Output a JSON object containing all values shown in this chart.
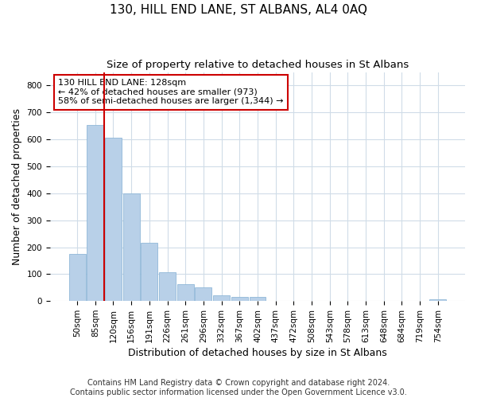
{
  "title": "130, HILL END LANE, ST ALBANS, AL4 0AQ",
  "subtitle": "Size of property relative to detached houses in St Albans",
  "xlabel": "Distribution of detached houses by size in St Albans",
  "ylabel": "Number of detached properties",
  "footnote1": "Contains HM Land Registry data © Crown copyright and database right 2024.",
  "footnote2": "Contains public sector information licensed under the Open Government Licence v3.0.",
  "bar_labels": [
    "50sqm",
    "85sqm",
    "120sqm",
    "156sqm",
    "191sqm",
    "226sqm",
    "261sqm",
    "296sqm",
    "332sqm",
    "367sqm",
    "402sqm",
    "437sqm",
    "472sqm",
    "508sqm",
    "543sqm",
    "578sqm",
    "613sqm",
    "648sqm",
    "684sqm",
    "719sqm",
    "754sqm"
  ],
  "bar_values": [
    175,
    655,
    605,
    400,
    215,
    107,
    63,
    50,
    20,
    16,
    14,
    0,
    0,
    0,
    0,
    0,
    0,
    0,
    0,
    0,
    8
  ],
  "bar_color": "#b8d0e8",
  "bar_edge_color": "#90b8d8",
  "vline_color": "#cc0000",
  "vline_x_idx": 2,
  "annotation_line1": "130 HILL END LANE: 128sqm",
  "annotation_line2": "← 42% of detached houses are smaller (973)",
  "annotation_line3": "58% of semi-detached houses are larger (1,344) →",
  "annotation_box_facecolor": "white",
  "annotation_box_edgecolor": "#cc0000",
  "ylim": [
    0,
    850
  ],
  "yticks": [
    0,
    100,
    200,
    300,
    400,
    500,
    600,
    700,
    800
  ],
  "fig_bg_color": "#ffffff",
  "plot_bg_color": "#ffffff",
  "grid_color": "#d0dce8",
  "title_fontsize": 11,
  "subtitle_fontsize": 9.5,
  "axis_label_fontsize": 9,
  "tick_fontsize": 7.5,
  "annotation_fontsize": 8,
  "footnote_fontsize": 7
}
